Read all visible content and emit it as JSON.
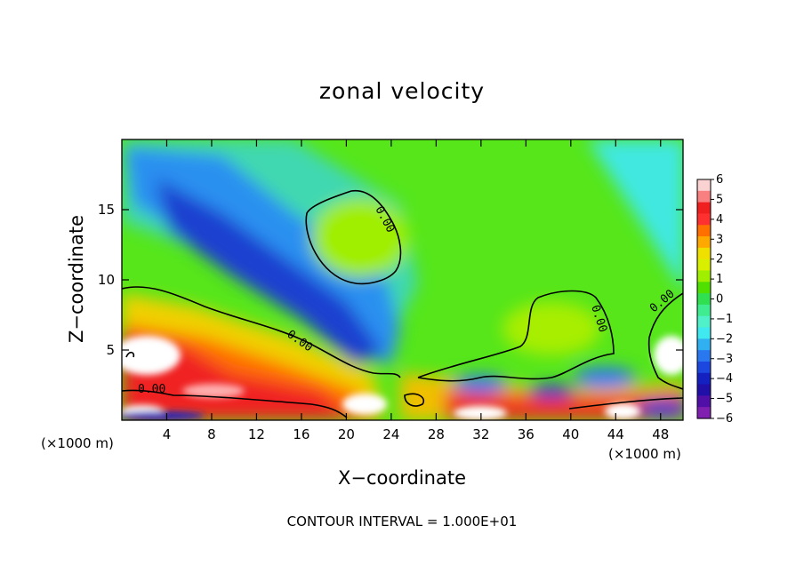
{
  "chart_data": {
    "type": "heatmap",
    "title": "zonal velocity",
    "xlabel": "X−coordinate",
    "ylabel": "Z−coordinate",
    "x_unit_left": "(×1000 m)",
    "x_unit_right": "(×1000 m)",
    "footer": "CONTOUR INTERVAL = 1.000E+01",
    "xlim": [
      0,
      50
    ],
    "ylim": [
      0,
      20
    ],
    "x_ticks": [
      4,
      8,
      12,
      16,
      20,
      24,
      28,
      32,
      36,
      40,
      44,
      48
    ],
    "y_ticks": [
      5,
      10,
      15
    ],
    "colorbar": {
      "range": [
        -6,
        6
      ],
      "labels": [
        "6",
        "5",
        "4",
        "3",
        "2",
        "1",
        "0",
        "−1",
        "−2",
        "−3",
        "−4",
        "−5",
        "−6"
      ],
      "colors": [
        "#fbd2d2",
        "#f88080",
        "#f02020",
        "#ff3030",
        "#ff7000",
        "#ffa800",
        "#f0e000",
        "#d8f000",
        "#a0ee00",
        "#50e000",
        "#30e050",
        "#40ec90",
        "#50f0c8",
        "#40e8f0",
        "#30b0f0",
        "#2a78f0",
        "#1c48e0",
        "#1420c0",
        "#2010a8",
        "#5010a8",
        "#8020b0"
      ]
    },
    "contour_label": "0.00",
    "features": [
      {
        "name": "upper-left negative jet",
        "value": -4,
        "points": [
          [
            2,
            18
          ],
          [
            8,
            14
          ],
          [
            14,
            11
          ],
          [
            20,
            8
          ],
          [
            22,
            5
          ],
          [
            21,
            3.5
          ]
        ]
      },
      {
        "name": "mid-upper positive cell",
        "value": 1,
        "x": 21,
        "z": 12.5
      },
      {
        "name": "lower-left positive layer",
        "value": 4,
        "z": [
          0,
          6
        ]
      },
      {
        "name": "right low-level positive",
        "value": 3,
        "x": [
          36,
          50
        ],
        "z": [
          0,
          3
        ]
      }
    ]
  }
}
